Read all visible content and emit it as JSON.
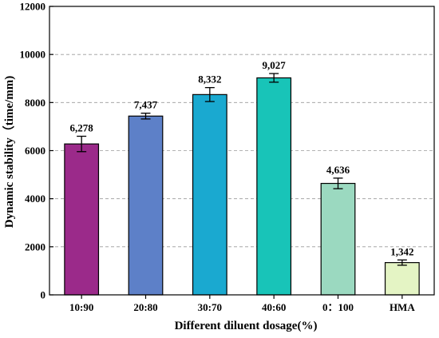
{
  "chart_data": {
    "type": "bar",
    "title": "",
    "xlabel": "Different diluent dosage(%)",
    "ylabel": "Dynamic stability（time/mm)",
    "categories": [
      "10:90",
      "20:80",
      "30:70",
      "40:60",
      "0：100",
      "HMA"
    ],
    "values": [
      6278,
      7437,
      8332,
      9027,
      4636,
      1342
    ],
    "error": [
      320,
      120,
      290,
      180,
      220,
      110
    ],
    "value_labels": [
      "6,278",
      "7,437",
      "8,332",
      "9,027",
      "4,636",
      "1,342"
    ],
    "colors": [
      "#9b2a8a",
      "#5d80c8",
      "#1aa9d0",
      "#18c4b8",
      "#9bd9c0",
      "#e4f4c4"
    ],
    "ylim": [
      0,
      12000
    ],
    "yticks": [
      0,
      2000,
      4000,
      6000,
      8000,
      10000,
      12000
    ],
    "grid": "horizontal-dashed",
    "legend": "none"
  }
}
